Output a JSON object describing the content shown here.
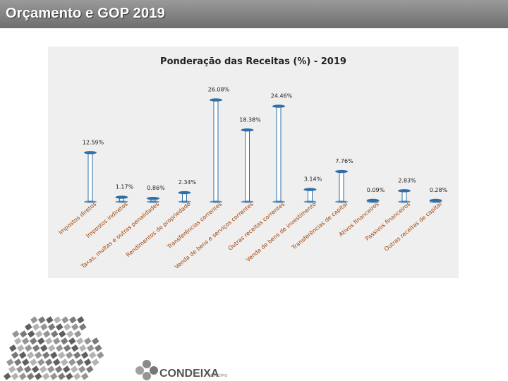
{
  "slide_title": "Orçamento e GOP 2019",
  "chart_data": {
    "type": "bar",
    "title": "Ponderação das Receitas (%) - 2019",
    "xlabel": "",
    "ylabel": "",
    "ylim": [
      0,
      28
    ],
    "grid": false,
    "legend": "none",
    "categories": [
      "Impostos diretos",
      "Impostos indiretos",
      "Taxas, multas e outras penalidades",
      "Rendimentos de propriedade",
      "Transferências correntes",
      "Venda de bens e serviços correntes",
      "Outras receitas correntes",
      "Venda de bens de investimento",
      "Transferências de capital",
      "Ativos financeiros",
      "Passivos financeiros",
      "Outras receitas de capital"
    ],
    "values": [
      12.59,
      1.17,
      0.86,
      2.34,
      26.08,
      18.38,
      24.46,
      3.14,
      7.76,
      0.09,
      2.83,
      0.28
    ],
    "value_labels": [
      "12.59%",
      "1.17%",
      "0.86%",
      "2.34%",
      "26.08%",
      "18.38%",
      "24.46%",
      "3.14%",
      "7.76%",
      "0.09%",
      "2.83%",
      "0.28%"
    ],
    "colors": {
      "bar_fill": "#ffffff",
      "bar_stroke": "#2e6da4",
      "cap": "#2f6fa6",
      "panel": "#efefef",
      "title_bar": "#7a7a7a"
    }
  },
  "footer": {
    "logo_name": "CONDEIXA",
    "logo_suffix": "MUNICÍPIO",
    "logo_icon": "condeixa-emblem-icon"
  }
}
